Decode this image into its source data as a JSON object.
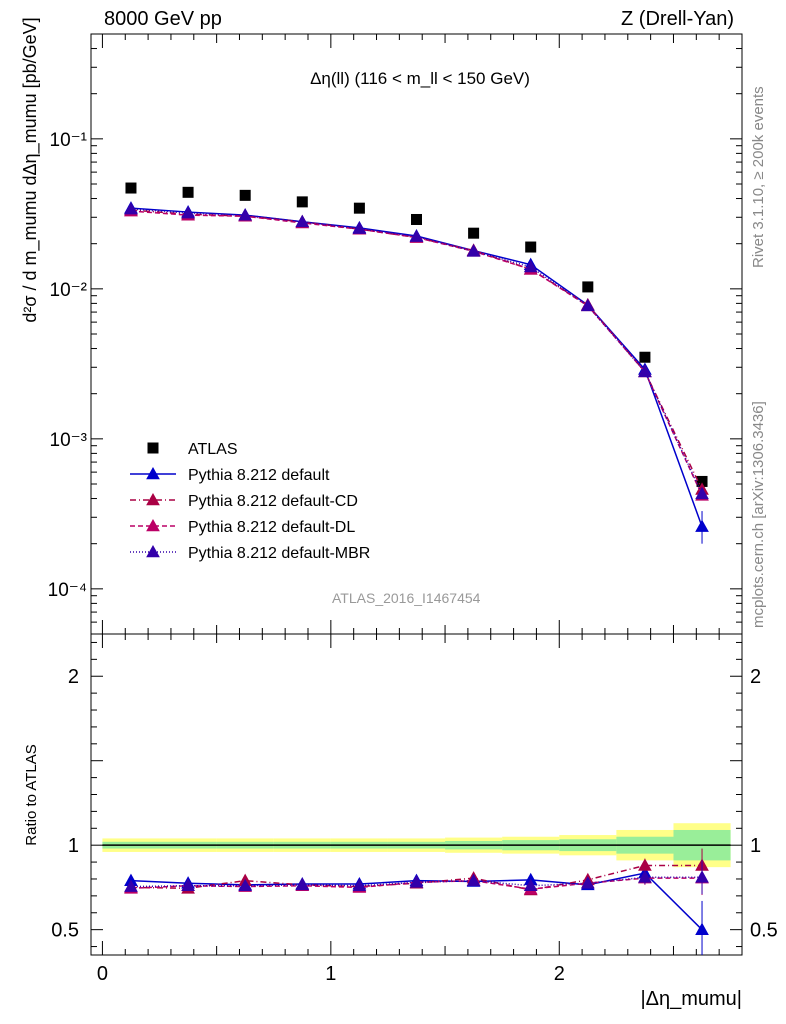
{
  "header": {
    "left": "8000 GeV pp",
    "right": "Z (Drell-Yan)"
  },
  "side_labels": {
    "rivet": "Rivet 3.1.10, ≥ 200k events",
    "mcplots": "mcplots.cern.ch [arXiv:1306.3436]"
  },
  "analysis_tag": "ATLAS_2016_I1467454",
  "colors": {
    "atlas": "#000000",
    "default": "#0000cc",
    "cd": "#aa0044",
    "dl": "#bb0066",
    "mbr": "#3300aa",
    "band_inner": "#99ee99",
    "band_outer": "#ffff88"
  },
  "chart_data": [
    {
      "type": "scatter",
      "panel": "main",
      "title": "Δη(ll) (116 < m_ll < 150 GeV)",
      "ylabel": "d²σ / d m_mumu dΔη_mumu [pb/GeV]",
      "yscale": "log",
      "ylim": [
        5e-05,
        0.5
      ],
      "xlim": [
        -0.05,
        2.8
      ],
      "legend_position": "bottom-left",
      "x": [
        0.125,
        0.375,
        0.625,
        0.875,
        1.125,
        1.375,
        1.625,
        1.875,
        2.125,
        2.375,
        2.625
      ],
      "series": [
        {
          "name": "ATLAS",
          "marker": "square",
          "line": "none",
          "values": [
            0.047,
            0.044,
            0.042,
            0.038,
            0.0345,
            0.029,
            0.0235,
            0.019,
            0.0103,
            0.0035,
            0.00052
          ]
        },
        {
          "name": "Pythia 8.212 default",
          "marker": "triangle",
          "line": "solid",
          "values": [
            0.0345,
            0.0325,
            0.031,
            0.028,
            0.0255,
            0.0225,
            0.018,
            0.0145,
            0.0078,
            0.0029,
            0.00026
          ]
        },
        {
          "name": "Pythia 8.212 default-CD",
          "marker": "triangle",
          "line": "dashdot",
          "values": [
            0.0335,
            0.0315,
            0.0305,
            0.028,
            0.025,
            0.022,
            0.018,
            0.0135,
            0.0078,
            0.0028,
            0.00046
          ]
        },
        {
          "name": "Pythia 8.212 default-DL",
          "marker": "triangle",
          "line": "dashed",
          "values": [
            0.033,
            0.031,
            0.0305,
            0.0275,
            0.025,
            0.022,
            0.0178,
            0.0135,
            0.0077,
            0.0028,
            0.00042
          ]
        },
        {
          "name": "Pythia 8.212 default-MBR",
          "marker": "triangle",
          "line": "dotted",
          "values": [
            0.034,
            0.032,
            0.031,
            0.028,
            0.0252,
            0.0223,
            0.0178,
            0.014,
            0.0077,
            0.0028,
            0.00043
          ]
        }
      ],
      "y_ticks": [
        {
          "value": 0.0001,
          "label": "10⁻⁴"
        },
        {
          "value": 0.001,
          "label": "10⁻³"
        },
        {
          "value": 0.01,
          "label": "10⁻²"
        },
        {
          "value": 0.1,
          "label": "10⁻¹"
        }
      ]
    },
    {
      "type": "line",
      "panel": "ratio",
      "ylabel": "Ratio to ATLAS",
      "xlabel": "|Δη_mumu|",
      "ylim": [
        0.35,
        2.25
      ],
      "xlim": [
        -0.05,
        2.8
      ],
      "x_ticks": [
        0,
        1,
        2
      ],
      "y_ticks": [
        0.5,
        1,
        2
      ],
      "x": [
        0.125,
        0.375,
        0.625,
        0.875,
        1.125,
        1.375,
        1.625,
        1.875,
        2.125,
        2.375,
        2.625
      ],
      "bin_edges": [
        0,
        0.25,
        0.5,
        0.75,
        1.0,
        1.25,
        1.5,
        1.75,
        2.0,
        2.25,
        2.5,
        2.75
      ],
      "band_inner": [
        0.02,
        0.02,
        0.02,
        0.02,
        0.02,
        0.02,
        0.025,
        0.03,
        0.035,
        0.05,
        0.09
      ],
      "band_outer": [
        0.04,
        0.04,
        0.04,
        0.04,
        0.04,
        0.04,
        0.045,
        0.05,
        0.06,
        0.09,
        0.13
      ],
      "series": [
        {
          "name": "Pythia 8.212 default",
          "values": [
            0.79,
            0.775,
            0.765,
            0.77,
            0.77,
            0.79,
            0.785,
            0.795,
            0.765,
            0.835,
            0.5
          ],
          "errors": [
            0.015,
            0.015,
            0.015,
            0.018,
            0.018,
            0.02,
            0.02,
            0.025,
            0.025,
            0.04,
            0.17
          ]
        },
        {
          "name": "Pythia 8.212 default-CD",
          "values": [
            0.75,
            0.745,
            0.79,
            0.765,
            0.755,
            0.775,
            0.805,
            0.735,
            0.795,
            0.88,
            0.88
          ],
          "errors": [
            0.015,
            0.015,
            0.015,
            0.018,
            0.018,
            0.02,
            0.02,
            0.025,
            0.025,
            0.04,
            0.1
          ]
        },
        {
          "name": "Pythia 8.212 default-DL",
          "values": [
            0.745,
            0.76,
            0.755,
            0.76,
            0.75,
            0.78,
            0.79,
            0.74,
            0.775,
            0.805,
            0.805
          ],
          "errors": [
            0.015,
            0.015,
            0.015,
            0.018,
            0.018,
            0.02,
            0.02,
            0.025,
            0.025,
            0.04,
            0.1
          ]
        },
        {
          "name": "Pythia 8.212 default-MBR",
          "values": [
            0.755,
            0.76,
            0.76,
            0.765,
            0.76,
            0.78,
            0.79,
            0.76,
            0.775,
            0.81,
            0.81
          ],
          "errors": [
            0.015,
            0.015,
            0.015,
            0.018,
            0.018,
            0.02,
            0.02,
            0.025,
            0.025,
            0.04,
            0.1
          ]
        }
      ]
    }
  ]
}
